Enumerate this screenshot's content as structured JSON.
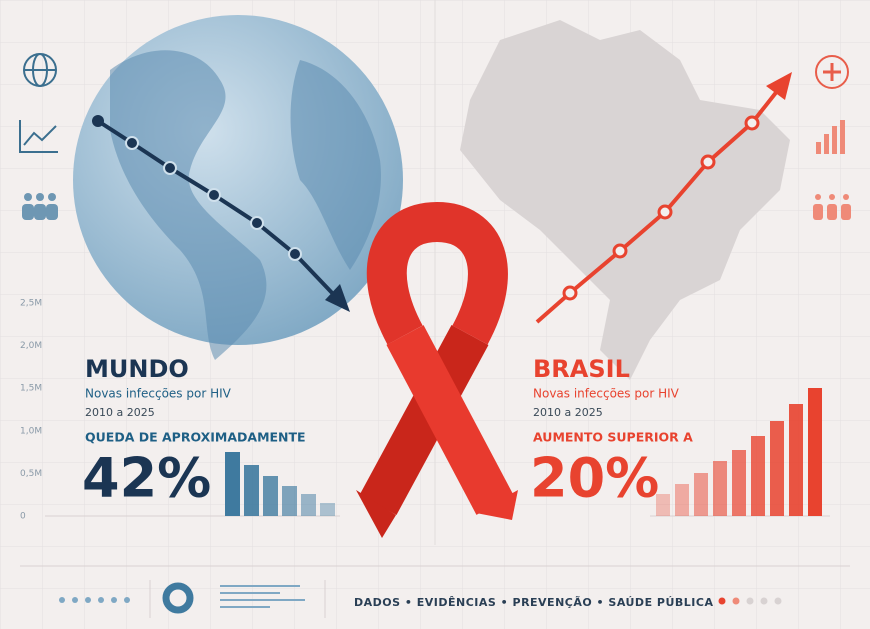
{
  "axis_labels": [
    "2,5M",
    "2,0M",
    "1,5M",
    "1,0M",
    "0,5M",
    "0"
  ],
  "left": {
    "title": "MUNDO",
    "subtitle": "Novas infecções por HIV",
    "period": "2010 a 2025",
    "change_label": "QUEDA DE APROXIMADAMENTE",
    "change_value": "42%"
  },
  "right": {
    "title": "BRASIL",
    "subtitle": "Novas infecções por HIV",
    "period": "2010 a 2025",
    "change_label": "AUMENTO SUPERIOR A",
    "change_value": "20%"
  },
  "footer": {
    "text": "DADOS • EVIDÊNCIAS • PREVENÇÃO • SAÚDE PÚBLICA"
  }
}
